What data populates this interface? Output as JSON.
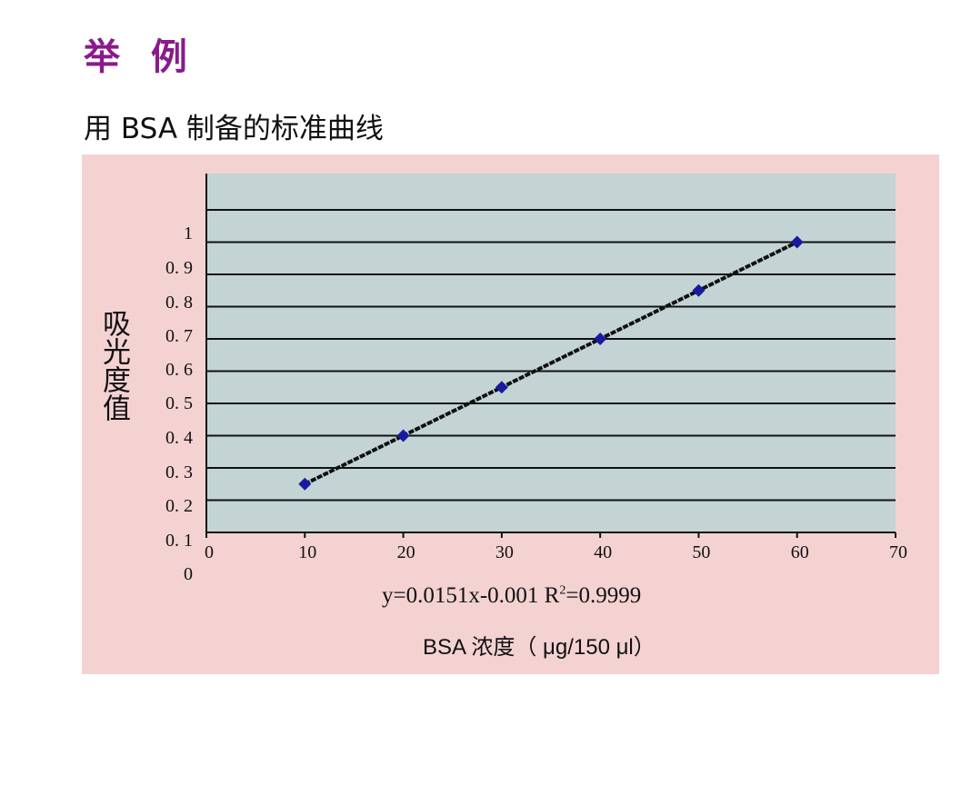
{
  "heading": "举 例",
  "subtitle": "用 BSA 制备的标准曲线",
  "equation": {
    "prefix": "y=0.0151x-0.001   R",
    "exp": "2",
    "suffix": "=0.9999"
  },
  "colors": {
    "heading": "#8a1a8c",
    "panel": "#f4d2d2",
    "plot_bg": "#c4d4d4",
    "marker": "#1a1aa0",
    "line": "#111111"
  },
  "chart_data": {
    "type": "scatter",
    "x": [
      10,
      20,
      30,
      40,
      50,
      60
    ],
    "y": [
      0.15,
      0.3,
      0.45,
      0.6,
      0.75,
      0.9
    ],
    "trendline": {
      "slope": 0.0151,
      "intercept": -0.001,
      "r2": 0.9999
    },
    "xlabel": "BSA 浓度（ μg/150 μl）",
    "ylabel": "吸光度值",
    "xlim": [
      0,
      70
    ],
    "ylim": [
      0,
      1
    ],
    "xticks": [
      "0",
      "10",
      "20",
      "30",
      "40",
      "50",
      "60",
      "70"
    ],
    "yticks": [
      "1",
      "0. 9",
      "0. 8",
      "0. 7",
      "0. 6",
      "0. 5",
      "0. 4",
      "0. 3",
      "0. 2",
      "0. 1",
      "0"
    ],
    "grid": true,
    "legend": "none"
  }
}
